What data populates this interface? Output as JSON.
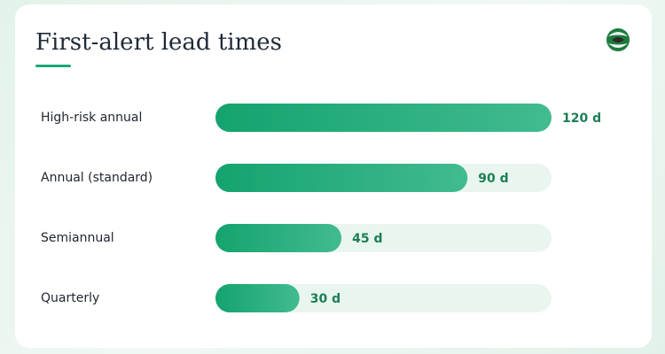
{
  "chart_data": {
    "type": "bar",
    "orientation": "horizontal",
    "title": "First-alert lead times",
    "categories": [
      "High-risk annual",
      "Annual (standard)",
      "Semiannual",
      "Quarterly"
    ],
    "values": [
      120,
      90,
      45,
      30
    ],
    "value_labels": [
      "120 d",
      "90 d",
      "45 d",
      "30 d"
    ],
    "color": "#17a874",
    "xlim": [
      0,
      120
    ]
  }
}
